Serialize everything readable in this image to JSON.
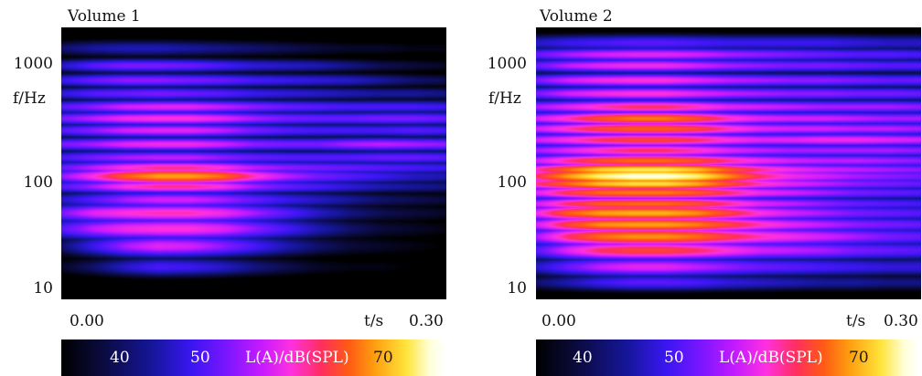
{
  "chart_data": [
    {
      "type": "heatmap",
      "title": "Volume 1",
      "ylabel": "f/Hz",
      "xlabel": "t/s",
      "x_ticks": [
        "0.00",
        "0.30"
      ],
      "y_ticks": [
        "1000",
        "100",
        "10"
      ],
      "y_scale": "log",
      "xlim": [
        0.0,
        0.3
      ],
      "ylim": [
        7,
        2500
      ],
      "colorbar": {
        "label": "L(A)/dB(SPL)",
        "ticks": [
          "40",
          "50",
          "70"
        ]
      },
      "bands": [
        {
          "f": 1600,
          "width": 0.06,
          "levels": [
            38,
            40,
            41,
            41,
            40,
            39,
            38,
            37,
            36,
            35,
            35,
            34,
            34
          ]
        },
        {
          "f": 1100,
          "width": 0.05,
          "levels": [
            42,
            46,
            48,
            48,
            47,
            45,
            43,
            42,
            41,
            39,
            37,
            36,
            35
          ]
        },
        {
          "f": 800,
          "width": 0.05,
          "levels": [
            44,
            47,
            49,
            49,
            48,
            47,
            45,
            44,
            43,
            42,
            40,
            38,
            37
          ]
        },
        {
          "f": 600,
          "width": 0.05,
          "levels": [
            43,
            46,
            47,
            48,
            47,
            46,
            44,
            43,
            42,
            41,
            40,
            40,
            39
          ]
        },
        {
          "f": 450,
          "width": 0.05,
          "levels": [
            46,
            49,
            52,
            53,
            53,
            51,
            49,
            47,
            46,
            45,
            45,
            45,
            44
          ]
        },
        {
          "f": 350,
          "width": 0.05,
          "levels": [
            48,
            51,
            54,
            55,
            55,
            53,
            50,
            48,
            47,
            47,
            48,
            48,
            47
          ]
        },
        {
          "f": 270,
          "width": 0.05,
          "levels": [
            46,
            49,
            52,
            53,
            53,
            51,
            48,
            46,
            45,
            45,
            45,
            46,
            45
          ]
        },
        {
          "f": 200,
          "width": 0.05,
          "levels": [
            48,
            50,
            53,
            54,
            54,
            52,
            49,
            48,
            48,
            50,
            51,
            50,
            49
          ]
        },
        {
          "f": 150,
          "width": 0.05,
          "levels": [
            45,
            48,
            50,
            51,
            51,
            49,
            47,
            46,
            46,
            46,
            47,
            47,
            46
          ]
        },
        {
          "f": 120,
          "width": 0.05,
          "levels": [
            47,
            51,
            55,
            57,
            57,
            55,
            51,
            49,
            48,
            47,
            46,
            45,
            44
          ]
        },
        {
          "f": 100,
          "width": 0.06,
          "levels": [
            49,
            55,
            62,
            66,
            66,
            63,
            56,
            51,
            48,
            46,
            44,
            42,
            41
          ]
        },
        {
          "f": 80,
          "width": 0.05,
          "levels": [
            46,
            50,
            55,
            57,
            57,
            55,
            50,
            47,
            45,
            43,
            41,
            40,
            39
          ]
        },
        {
          "f": 60,
          "width": 0.06,
          "levels": [
            42,
            46,
            50,
            52,
            52,
            50,
            47,
            44,
            42,
            40,
            38,
            37,
            36
          ]
        },
        {
          "f": 45,
          "width": 0.07,
          "levels": [
            48,
            53,
            55,
            56,
            56,
            54,
            50,
            46,
            42,
            39,
            37,
            36,
            35
          ]
        },
        {
          "f": 32,
          "width": 0.08,
          "levels": [
            46,
            51,
            54,
            55,
            55,
            53,
            49,
            45,
            41,
            38,
            36,
            35,
            34
          ]
        },
        {
          "f": 22,
          "width": 0.08,
          "levels": [
            38,
            44,
            50,
            53,
            52,
            49,
            45,
            41,
            38,
            36,
            35,
            34,
            33
          ]
        },
        {
          "f": 14,
          "width": 0.07,
          "levels": [
            35,
            38,
            42,
            45,
            44,
            42,
            39,
            37,
            35,
            34,
            34,
            33,
            33
          ]
        }
      ]
    },
    {
      "type": "heatmap",
      "title": "Volume 2",
      "ylabel": "f/Hz",
      "xlabel": "t/s",
      "x_ticks": [
        "0.00",
        "0.30"
      ],
      "y_ticks": [
        "1000",
        "100",
        "10"
      ],
      "y_scale": "log",
      "xlim": [
        0.0,
        0.3
      ],
      "ylim": [
        7,
        2500
      ],
      "colorbar": {
        "label": "L(A)/dB(SPL)",
        "ticks": [
          "40",
          "50",
          "70"
        ]
      },
      "bands": [
        {
          "f": 1800,
          "width": 0.06,
          "levels": [
            42,
            44,
            45,
            46,
            46,
            45,
            44,
            44,
            44,
            44,
            43,
            42,
            42
          ]
        },
        {
          "f": 1400,
          "width": 0.05,
          "levels": [
            47,
            50,
            52,
            53,
            53,
            52,
            50,
            49,
            48,
            47,
            46,
            46,
            45
          ]
        },
        {
          "f": 1100,
          "width": 0.05,
          "levels": [
            47,
            51,
            53,
            54,
            54,
            52,
            50,
            49,
            48,
            48,
            47,
            46,
            46
          ]
        },
        {
          "f": 800,
          "width": 0.05,
          "levels": [
            48,
            52,
            54,
            55,
            55,
            53,
            51,
            50,
            49,
            49,
            48,
            47,
            47
          ]
        },
        {
          "f": 600,
          "width": 0.05,
          "levels": [
            48,
            52,
            54,
            55,
            55,
            53,
            51,
            50,
            49,
            49,
            48,
            48,
            47
          ]
        },
        {
          "f": 450,
          "width": 0.05,
          "levels": [
            50,
            53,
            56,
            58,
            58,
            56,
            53,
            52,
            51,
            50,
            50,
            50,
            49
          ]
        },
        {
          "f": 350,
          "width": 0.05,
          "levels": [
            52,
            56,
            61,
            64,
            64,
            61,
            56,
            53,
            52,
            52,
            51,
            50,
            50
          ]
        },
        {
          "f": 280,
          "width": 0.05,
          "levels": [
            52,
            56,
            60,
            62,
            62,
            60,
            56,
            53,
            52,
            52,
            51,
            51,
            50
          ]
        },
        {
          "f": 220,
          "width": 0.05,
          "levels": [
            52,
            55,
            58,
            60,
            60,
            58,
            55,
            53,
            53,
            54,
            54,
            53,
            52
          ]
        },
        {
          "f": 175,
          "width": 0.05,
          "levels": [
            50,
            53,
            56,
            58,
            58,
            56,
            53,
            51,
            50,
            50,
            50,
            50,
            49
          ]
        },
        {
          "f": 140,
          "width": 0.05,
          "levels": [
            52,
            57,
            61,
            63,
            63,
            61,
            57,
            54,
            52,
            51,
            51,
            50,
            49
          ]
        },
        {
          "f": 115,
          "width": 0.05,
          "levels": [
            56,
            63,
            69,
            71,
            71,
            68,
            62,
            57,
            54,
            52,
            51,
            50,
            49
          ]
        },
        {
          "f": 100,
          "width": 0.06,
          "levels": [
            58,
            66,
            72,
            75,
            75,
            72,
            65,
            58,
            54,
            52,
            50,
            49,
            48
          ]
        },
        {
          "f": 85,
          "width": 0.05,
          "levels": [
            57,
            63,
            68,
            70,
            70,
            67,
            61,
            56,
            53,
            51,
            49,
            48,
            47
          ]
        },
        {
          "f": 70,
          "width": 0.05,
          "levels": [
            53,
            59,
            63,
            64,
            64,
            62,
            58,
            54,
            52,
            50,
            48,
            47,
            46
          ]
        },
        {
          "f": 55,
          "width": 0.05,
          "levels": [
            52,
            58,
            62,
            63,
            63,
            61,
            57,
            53,
            51,
            49,
            47,
            46,
            45
          ]
        },
        {
          "f": 45,
          "width": 0.06,
          "levels": [
            54,
            62,
            66,
            67,
            67,
            65,
            60,
            55,
            52,
            50,
            48,
            47,
            46
          ]
        },
        {
          "f": 35,
          "width": 0.06,
          "levels": [
            52,
            60,
            65,
            66,
            66,
            64,
            60,
            56,
            53,
            51,
            49,
            48,
            47
          ]
        },
        {
          "f": 27,
          "width": 0.07,
          "levels": [
            50,
            58,
            63,
            65,
            65,
            63,
            59,
            56,
            54,
            52,
            50,
            48,
            47
          ]
        },
        {
          "f": 20,
          "width": 0.07,
          "levels": [
            46,
            53,
            58,
            60,
            60,
            58,
            55,
            52,
            51,
            50,
            48,
            47,
            46
          ]
        },
        {
          "f": 14,
          "width": 0.07,
          "levels": [
            42,
            47,
            51,
            53,
            53,
            51,
            49,
            47,
            46,
            45,
            44,
            43,
            43
          ]
        },
        {
          "f": 10,
          "width": 0.06,
          "levels": [
            38,
            41,
            44,
            46,
            46,
            45,
            43,
            42,
            41,
            40,
            40,
            39,
            39
          ]
        }
      ]
    }
  ]
}
